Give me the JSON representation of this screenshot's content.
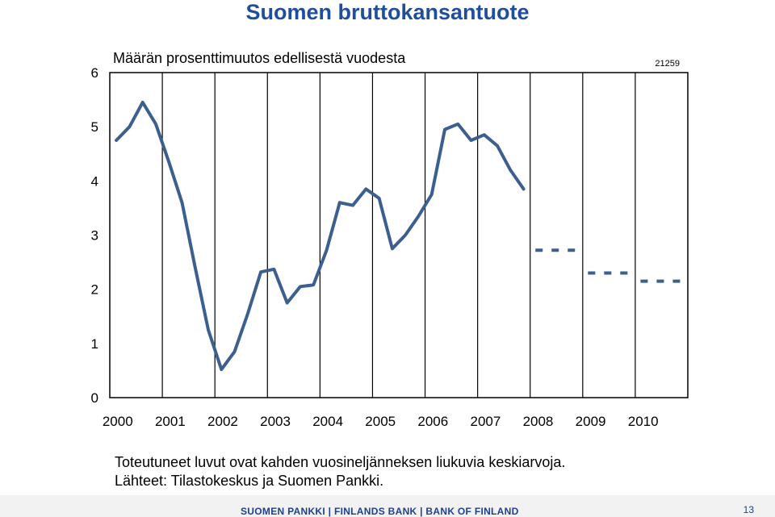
{
  "title": "Suomen bruttokansantuote",
  "chart_data": {
    "type": "line",
    "ylabel": "Määrän prosenttimuutos edellisestä vuodesta",
    "series_code": "21259",
    "ylim": [
      0,
      6
    ],
    "yticks": [
      "0",
      "1",
      "2",
      "3",
      "4",
      "5",
      "6"
    ],
    "xlim": [
      2000,
      2011
    ],
    "categories": [
      "2000",
      "2001",
      "2002",
      "2003",
      "2004",
      "2005",
      "2006",
      "2007",
      "2008",
      "2009",
      "2010"
    ],
    "grid": "vertical lines at year boundaries",
    "color": "#3b5f8f",
    "series": [
      {
        "style": "solid",
        "x": [
          2000.125,
          2000.375,
          2000.625,
          2000.875,
          2001.125,
          2001.375,
          2001.625,
          2001.875,
          2002.125,
          2002.375,
          2002.625,
          2002.875,
          2003.125,
          2003.375,
          2003.625,
          2003.875,
          2004.125,
          2004.375,
          2004.625,
          2004.875,
          2005.125,
          2005.375,
          2005.625,
          2005.875,
          2006.125,
          2006.375,
          2006.625,
          2006.875,
          2007.125,
          2007.375,
          2007.625,
          2007.875
        ],
        "y": [
          4.75,
          5.0,
          5.45,
          5.05,
          4.35,
          3.6,
          2.4,
          1.25,
          0.52,
          0.85,
          1.55,
          2.32,
          2.37,
          1.75,
          2.05,
          2.08,
          2.72,
          3.6,
          3.55,
          3.85,
          3.68,
          2.75,
          3.0,
          3.35,
          3.75,
          4.95,
          5.05,
          4.75,
          4.85,
          4.65,
          4.2,
          3.85
        ]
      },
      {
        "style": "dashed",
        "segments": [
          {
            "x": [
              2008.1,
              2008.9
            ],
            "y": 2.72
          },
          {
            "x": [
              2009.1,
              2009.9
            ],
            "y": 2.3
          },
          {
            "x": [
              2010.1,
              2010.9
            ],
            "y": 2.15
          }
        ]
      }
    ]
  },
  "notes": [
    "Toteutuneet luvut ovat kahden vuosineljänneksen liukuvia keskiarvoja.",
    "Lähteet: Tilastokeskus ja Suomen Pankki."
  ],
  "footer": {
    "brand": "SUOMEN PANKKI | FINLANDS BANK | BANK OF FINLAND",
    "page_number": "13"
  }
}
